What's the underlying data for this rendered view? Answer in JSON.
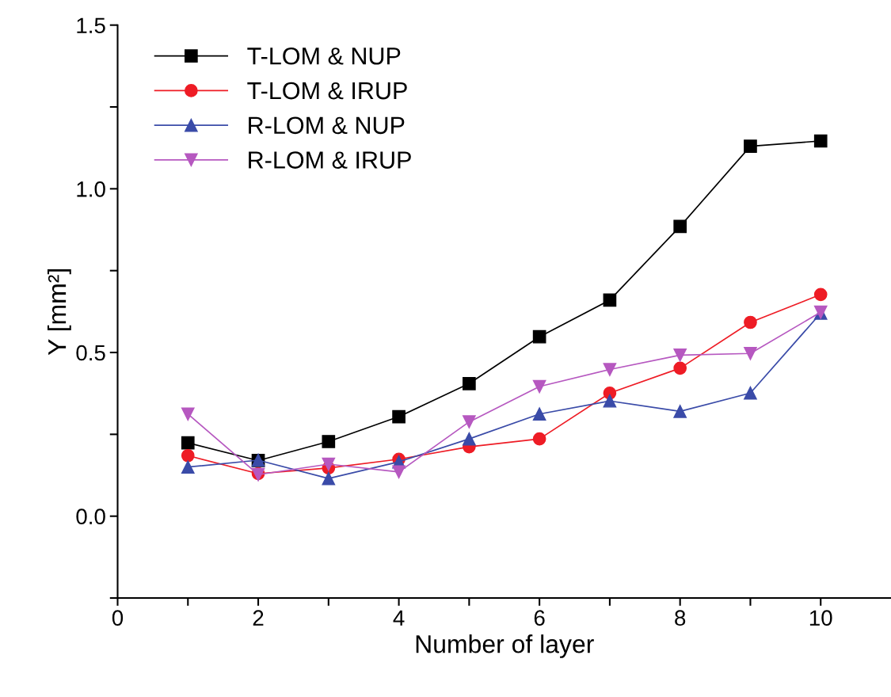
{
  "chart_data": {
    "type": "line",
    "xlabel": "Number of layer",
    "ylabel": "Y [mm²]",
    "x": [
      1,
      2,
      3,
      4,
      5,
      6,
      7,
      8,
      9,
      10
    ],
    "series": [
      {
        "name": "T-LOM & NUP",
        "color": "#000000",
        "marker": "square",
        "values": [
          0.224,
          0.17,
          0.228,
          0.304,
          0.405,
          0.548,
          0.66,
          0.885,
          1.13,
          1.146
        ]
      },
      {
        "name": "T-LOM & IRUP",
        "color": "#ee1c25",
        "marker": "circle",
        "values": [
          0.185,
          0.13,
          0.147,
          0.174,
          0.212,
          0.236,
          0.376,
          0.452,
          0.592,
          0.677
        ]
      },
      {
        "name": "R-LOM & NUP",
        "color": "#3a4ba8",
        "marker": "triangle",
        "values": [
          0.15,
          0.171,
          0.115,
          0.166,
          0.236,
          0.312,
          0.352,
          0.32,
          0.376,
          0.62
        ]
      },
      {
        "name": "R-LOM & IRUP",
        "color": "#b658c0",
        "marker": "triangle_down",
        "values": [
          0.312,
          0.127,
          0.159,
          0.135,
          0.288,
          0.396,
          0.448,
          0.492,
          0.497,
          0.623
        ]
      }
    ],
    "xlim": [
      0,
      11
    ],
    "xticks": [
      0,
      {
        "value": 1,
        "label": null
      },
      2,
      {
        "value": 3,
        "label": null
      },
      4,
      {
        "value": 5,
        "label": null
      },
      6,
      {
        "value": 7,
        "label": null
      },
      8,
      {
        "value": 9,
        "label": null
      },
      10
    ],
    "ylim": [
      -0.25,
      1.5
    ],
    "yticks": [
      {
        "value": -0.25,
        "label": null
      },
      {
        "value": 0,
        "label": "0.0"
      },
      {
        "value": 0.25,
        "label": null
      },
      {
        "value": 0.5,
        "label": "0.5"
      },
      {
        "value": 0.75,
        "label": null
      },
      {
        "value": 1,
        "label": "1.0"
      },
      {
        "value": 1.25,
        "label": null
      },
      {
        "value": 1.5,
        "label": "1.5"
      }
    ],
    "grid": false,
    "legend": "top left",
    "line_style": "solid"
  }
}
